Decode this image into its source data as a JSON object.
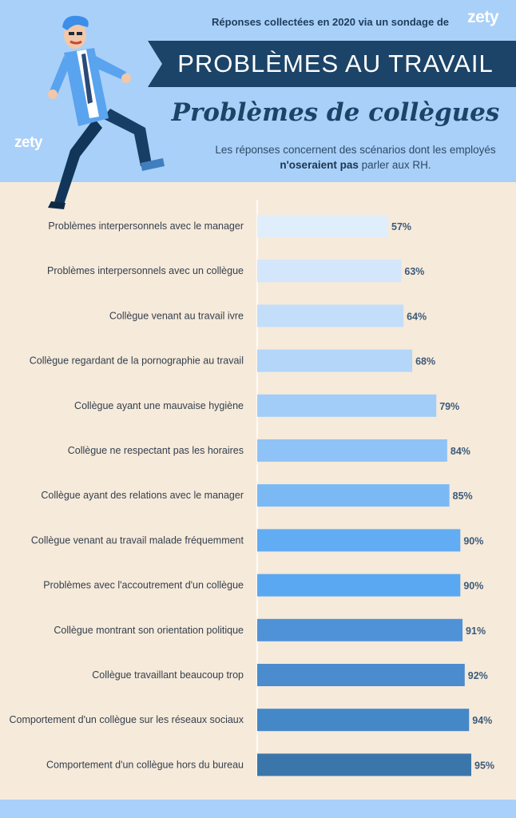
{
  "header": {
    "source_text": "Réponses collectées en 2020 via un sondage de",
    "logo": "zety",
    "banner_title": "PROBLÈMES AU TRAVAIL",
    "subtitle": "Problèmes de collègues",
    "note_part1": "Les réponses concernent des scénarios dont les employés ",
    "note_bold": "n'oseraient pas",
    "note_part2": " parler aux RH."
  },
  "colors": {
    "header_bg": "#a9d0f8",
    "page_bg": "#f6eadb",
    "banner_bg": "#1c4468",
    "bars": [
      "#e0eefc",
      "#d3e6fb",
      "#c2def9",
      "#b3d6f9",
      "#a2cdf8",
      "#8fc3f7",
      "#7bb9f5",
      "#62acf3",
      "#5aa8f2",
      "#4f92d7",
      "#4a8ccd",
      "#4488c7",
      "#3b76ab"
    ]
  },
  "chart_data": {
    "type": "bar",
    "orientation": "horizontal",
    "categories": [
      "Problèmes interpersonnels avec le manager",
      "Problèmes interpersonnels avec un collègue",
      "Collègue venant au travail ivre",
      "Collègue regardant de la pornographie au travail",
      "Collègue ayant une mauvaise hygiène",
      "Collègue ne respectant pas les horaires",
      "Collègue ayant des relations avec le manager",
      "Collègue venant au travail malade fréquemment",
      "Problèmes avec l'accoutrement d'un collègue",
      "Collègue montrant son orientation politique",
      "Collègue travaillant beaucoup trop",
      "Comportement d'un collègue sur les réseaux sociaux",
      "Comportement d'un collègue hors du bureau"
    ],
    "values": [
      57,
      63,
      64,
      68,
      79,
      84,
      85,
      90,
      90,
      91,
      92,
      94,
      95
    ],
    "labels": [
      "57%",
      "63%",
      "64%",
      "68%",
      "79%",
      "84%",
      "85%",
      "90%",
      "90%",
      "91%",
      "92%",
      "94%",
      "95%"
    ],
    "unit": "%",
    "xlim": [
      0,
      100
    ],
    "grid": false
  }
}
